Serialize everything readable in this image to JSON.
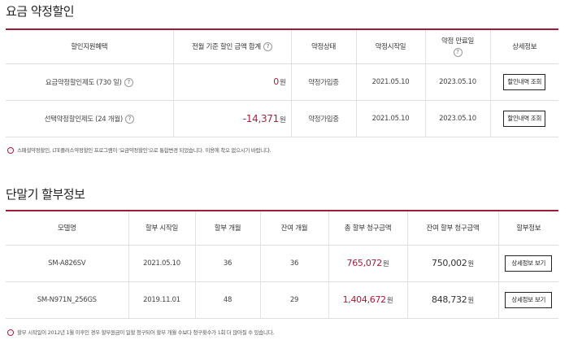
{
  "section1": {
    "title": "요금 약정할인",
    "headers": [
      "할인지원혜택",
      "전월 기준 할인 금액 합계",
      "약정상태",
      "약정시작일",
      "약정 만료일",
      "상세정보"
    ],
    "help_icon": "?",
    "rows": [
      {
        "benefit": "요금약정할인제도 (730 일)",
        "amount": "0",
        "unit": "원",
        "status": "약정가입중",
        "start": "2021.05.10",
        "end": "2023.05.10",
        "button": "할인내역 조회"
      },
      {
        "benefit": "선택약정할인제도 (24 개월)",
        "amount": "-14,371",
        "unit": "원",
        "status": "약정가입중",
        "start": "2021.05.10",
        "end": "2023.05.10",
        "button": "할인내역 조회"
      }
    ],
    "note": "스페셜약정할인, LTE플러스약정할인 프로그램이 '요금약정할인'으로 통합변경 되었습니다. 이용에 착오 없으시기 바랍니다."
  },
  "section2": {
    "title": "단말기 할부정보",
    "headers": [
      "모델명",
      "할부 시작일",
      "할부 개월",
      "잔여 개월",
      "총 할부 청구금액",
      "잔여 할부 청구금액",
      "할부정보"
    ],
    "rows": [
      {
        "model": "SM-A826SV",
        "start": "2021.05.10",
        "months": "36",
        "remain": "36",
        "total": "765,072",
        "remain_amount": "750,002",
        "unit": "원",
        "button": "상세정보 보기"
      },
      {
        "model": "SM-N971N_256GS",
        "start": "2019.11.01",
        "months": "48",
        "remain": "29",
        "total": "1,404,672",
        "remain_amount": "848,732",
        "unit": "원",
        "button": "상세정보 보기"
      }
    ],
    "note": "할부 시작일이 2012년 1월 이후인 경우 할부원금이 일할 청구되어 할부 개월 수보다 청구횟수가 1회 더 많아질 수 있습니다."
  },
  "colors": {
    "accent": "#a01c36",
    "amount": "#a0243d"
  },
  "icons": {
    "help": "question-circle-icon",
    "note": "info-circle-icon"
  }
}
